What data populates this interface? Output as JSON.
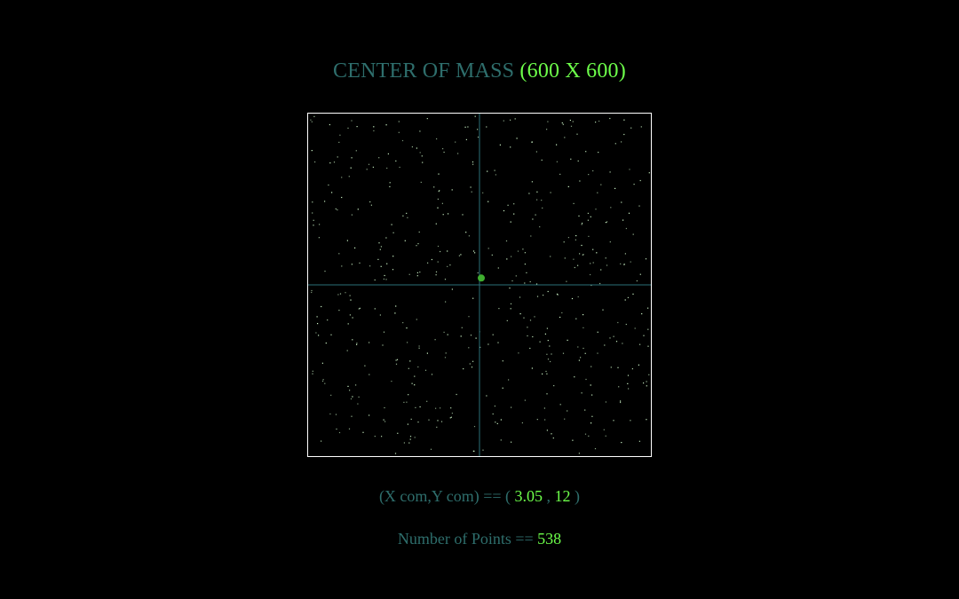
{
  "header": {
    "title": "CENTER OF MASS",
    "dimensions": "(600 X 600)"
  },
  "colors": {
    "background": "#000000",
    "label": "#2e6e6c",
    "value": "#6dff4a",
    "axis": "#2a6f78",
    "frame": "#ffffff",
    "point": "#d6ffd0",
    "com_marker": "#3fae2f"
  },
  "canvas": {
    "width_units": 600,
    "height_units": 600
  },
  "center_of_mass": {
    "label_prefix": "(X com,Y com) == (",
    "x": "3.05",
    "separator": ",",
    "y": "12",
    "label_suffix": ")"
  },
  "points_info": {
    "label": "Number of Points ==",
    "count": "538"
  }
}
